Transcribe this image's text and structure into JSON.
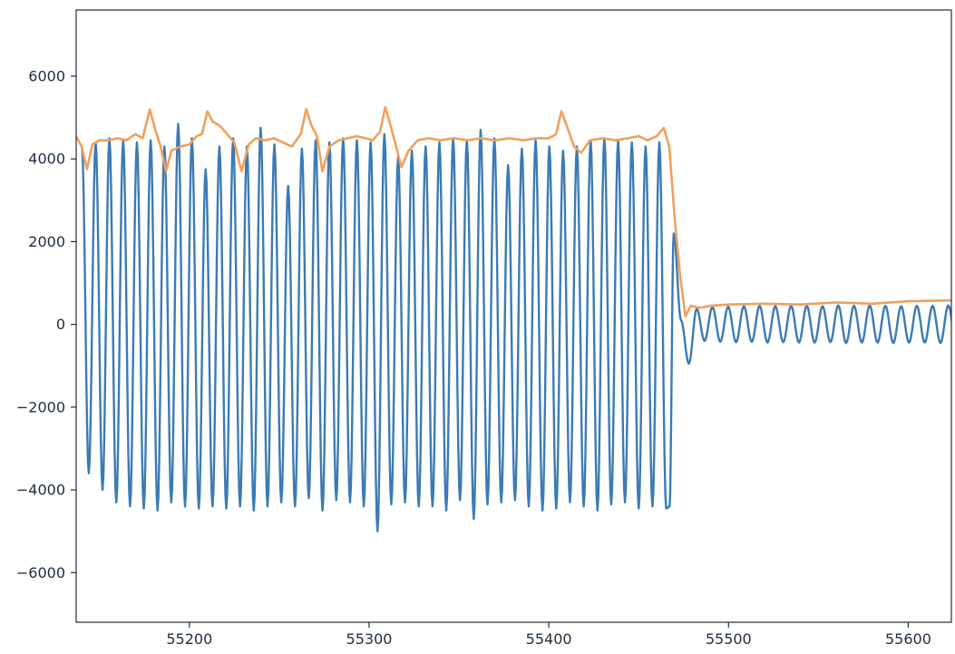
{
  "chart_data": {
    "type": "line",
    "title": "",
    "xlabel": "",
    "ylabel": "",
    "xlim": [
      55137,
      55624
    ],
    "ylim": [
      -7200,
      7600
    ],
    "xticks": [
      55200,
      55300,
      55400,
      55500,
      55600
    ],
    "yticks": [
      -6000,
      -4000,
      -2000,
      0,
      2000,
      4000,
      6000
    ],
    "xtick_labels": [
      "55200",
      "55300",
      "55400",
      "55500",
      "55600"
    ],
    "ytick_labels": [
      "−6000",
      "−4000",
      "−2000",
      "0",
      "2000",
      "4000",
      "6000"
    ],
    "grid": false,
    "legend": "none",
    "series": [
      {
        "color": "#3b7bb5",
        "kind": "oscillation",
        "segments": [
          {
            "x_start": 55137,
            "x_end": 55466,
            "period": 7.65,
            "phase_x": 55138,
            "x_peak_offset": 2.2
          },
          {
            "x_start": 55474,
            "x_end": 55624,
            "period": 8.75,
            "phase_x": 55479,
            "x_peak_offset": 3.3
          }
        ],
        "peaks": [
          4300,
          4400,
          4500,
          4450,
          4400,
          4450,
          4300,
          4850,
          4500,
          3750,
          4300,
          4500,
          4300,
          4750,
          4350,
          3350,
          4250,
          4450,
          4400,
          4500,
          4450,
          4400,
          4600,
          4050,
          4200,
          4300,
          4400,
          4500,
          4450,
          4700,
          4500,
          3850,
          4250,
          4450,
          4300,
          4200,
          4300,
          4450,
          4500,
          4450,
          4400,
          4300,
          4400,
          4250,
          4550,
          4800,
          4400,
          4450,
          4500,
          4500,
          4550,
          4500,
          4450,
          4500,
          3000
        ],
        "troughs": [
          -3600,
          -4000,
          -4300,
          -4400,
          -4450,
          -4500,
          -4300,
          -4400,
          -4450,
          -4400,
          -4450,
          -4400,
          -4500,
          -4400,
          -4300,
          -4400,
          -4200,
          -4500,
          -4250,
          -4300,
          -4400,
          -5000,
          -4350,
          -4300,
          -4400,
          -4400,
          -4500,
          -4250,
          -4700,
          -4350,
          -4300,
          -4250,
          -4400,
          -4500,
          -4450,
          -4300,
          -4400,
          -4500,
          -4350,
          -4300,
          -4450,
          -4400,
          -4450,
          -4300,
          -4600,
          -4900,
          -4350,
          -4300,
          -4500,
          -4400,
          -4400,
          -4300,
          -4200,
          -4000
        ],
        "post_peaks": [
          100,
          380,
          420,
          430,
          440,
          450,
          440,
          450,
          450,
          440,
          460,
          450,
          460,
          450,
          440,
          450,
          450,
          460,
          450
        ],
        "post_troughs": [
          -950,
          -400,
          -420,
          -430,
          -420,
          -440,
          -430,
          -440,
          -440,
          -430,
          -450,
          -440,
          -440,
          -450,
          -440,
          -440,
          -450,
          -460
        ]
      },
      {
        "color": "#f0a05a",
        "kind": "envelope",
        "points": [
          [
            55137,
            4550
          ],
          [
            55140,
            4300
          ],
          [
            55143,
            3750
          ],
          [
            55146,
            4350
          ],
          [
            55150,
            4450
          ],
          [
            55155,
            4450
          ],
          [
            55160,
            4500
          ],
          [
            55165,
            4450
          ],
          [
            55170,
            4600
          ],
          [
            55174,
            4500
          ],
          [
            55178,
            5200
          ],
          [
            55181,
            4700
          ],
          [
            55184,
            4300
          ],
          [
            55187,
            3700
          ],
          [
            55190,
            4200
          ],
          [
            55195,
            4300
          ],
          [
            55200,
            4350
          ],
          [
            55204,
            4550
          ],
          [
            55207,
            4600
          ],
          [
            55210,
            5150
          ],
          [
            55213,
            4900
          ],
          [
            55217,
            4800
          ],
          [
            55221,
            4600
          ],
          [
            55225,
            4400
          ],
          [
            55229,
            3700
          ],
          [
            55233,
            4350
          ],
          [
            55237,
            4500
          ],
          [
            55242,
            4450
          ],
          [
            55247,
            4500
          ],
          [
            55252,
            4400
          ],
          [
            55257,
            4300
          ],
          [
            55262,
            4600
          ],
          [
            55265,
            5200
          ],
          [
            55268,
            4800
          ],
          [
            55271,
            4550
          ],
          [
            55274,
            3700
          ],
          [
            55278,
            4300
          ],
          [
            55283,
            4450
          ],
          [
            55288,
            4500
          ],
          [
            55293,
            4550
          ],
          [
            55298,
            4500
          ],
          [
            55302,
            4450
          ],
          [
            55306,
            4650
          ],
          [
            55309,
            5250
          ],
          [
            55312,
            4800
          ],
          [
            55315,
            4300
          ],
          [
            55318,
            3800
          ],
          [
            55322,
            4200
          ],
          [
            55327,
            4450
          ],
          [
            55333,
            4500
          ],
          [
            55340,
            4450
          ],
          [
            55347,
            4500
          ],
          [
            55355,
            4450
          ],
          [
            55362,
            4500
          ],
          [
            55370,
            4450
          ],
          [
            55378,
            4500
          ],
          [
            55386,
            4450
          ],
          [
            55393,
            4500
          ],
          [
            55400,
            4500
          ],
          [
            55404,
            4600
          ],
          [
            55407,
            5150
          ],
          [
            55410,
            4800
          ],
          [
            55414,
            4300
          ],
          [
            55418,
            4150
          ],
          [
            55423,
            4450
          ],
          [
            55430,
            4500
          ],
          [
            55437,
            4450
          ],
          [
            55444,
            4500
          ],
          [
            55450,
            4550
          ],
          [
            55455,
            4450
          ],
          [
            55460,
            4550
          ],
          [
            55464,
            4750
          ],
          [
            55467,
            4300
          ],
          [
            55470,
            2600
          ],
          [
            55473,
            1200
          ],
          [
            55476,
            200
          ],
          [
            55479,
            450
          ],
          [
            55484,
            400
          ],
          [
            55490,
            450
          ],
          [
            55500,
            480
          ],
          [
            55520,
            500
          ],
          [
            55540,
            480
          ],
          [
            55560,
            530
          ],
          [
            55580,
            500
          ],
          [
            55600,
            560
          ],
          [
            55624,
            580
          ]
        ]
      }
    ]
  }
}
